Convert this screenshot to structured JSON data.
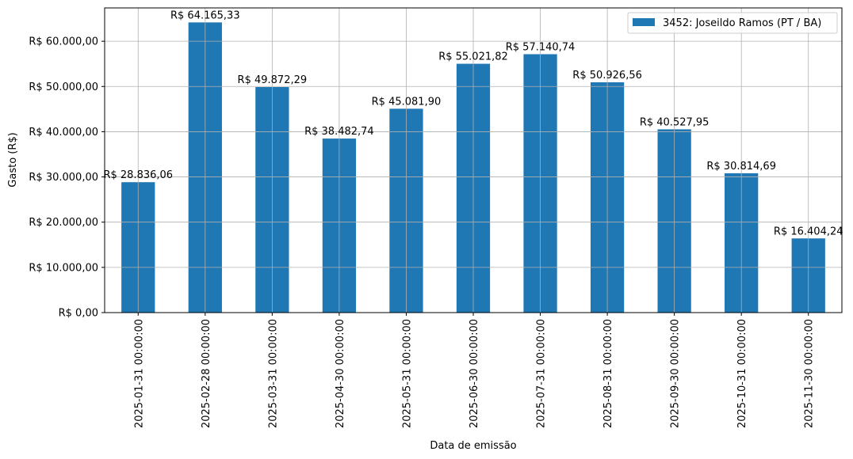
{
  "chart_data": {
    "type": "bar",
    "title": "",
    "xlabel": "Data de emissão",
    "ylabel": "Gasto (R$)",
    "categories": [
      "2025-01-31 00:00:00",
      "2025-02-28 00:00:00",
      "2025-03-31 00:00:00",
      "2025-04-30 00:00:00",
      "2025-05-31 00:00:00",
      "2025-06-30 00:00:00",
      "2025-07-31 00:00:00",
      "2025-08-31 00:00:00",
      "2025-09-30 00:00:00",
      "2025-10-31 00:00:00",
      "2025-11-30 00:00:00"
    ],
    "series": [
      {
        "name": "3452: Joseildo Ramos (PT / BA)",
        "values": [
          28836.06,
          64165.33,
          49872.29,
          38482.74,
          45081.9,
          55021.82,
          57140.74,
          50926.56,
          40527.95,
          30814.69,
          16404.24
        ],
        "labels": [
          "R$ 28.836,06",
          "R$ 64.165,33",
          "R$ 49.872,29",
          "R$ 38.482,74",
          "R$ 45.081,90",
          "R$ 55.021,82",
          "R$ 57.140,74",
          "R$ 50.926,56",
          "R$ 40.527,95",
          "R$ 30.814,69",
          "R$ 16.404,24"
        ],
        "color": "#1f77b4"
      }
    ],
    "yticks": [
      0,
      10000,
      20000,
      30000,
      40000,
      50000,
      60000
    ],
    "ytick_labels": [
      "R$ 0,00",
      "R$ 10.000,00",
      "R$ 20.000,00",
      "R$ 30.000,00",
      "R$ 40.000,00",
      "R$ 50.000,00",
      "R$ 60.000,00"
    ],
    "ylim": [
      0,
      67373
    ],
    "grid": true,
    "legend": "top-right"
  }
}
